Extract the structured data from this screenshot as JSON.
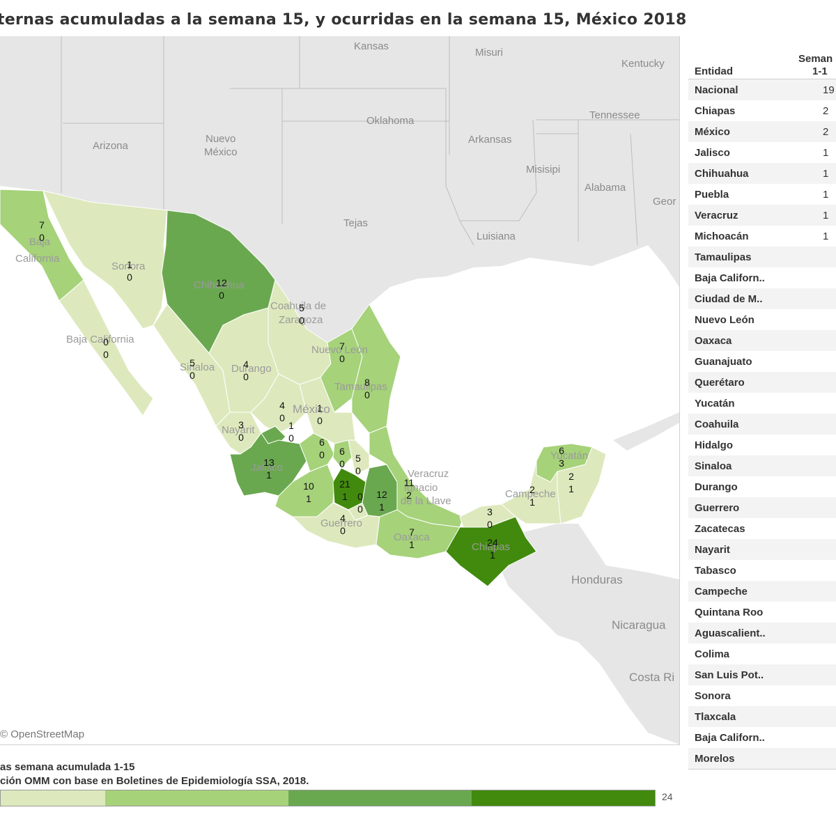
{
  "title": "ternas acumuladas a la semana 15, y ocurridas en la semana 15, México 2018",
  "attribution": "© OpenStreetMap",
  "legend": {
    "line1": "as semana acumulada 1-15",
    "line2": "ción OMM con base en Boletines de Epidemiología SSA, 2018.",
    "max_label": "24",
    "colors": [
      "#dde9bd",
      "#a6d27a",
      "#6aa850",
      "#418a0d"
    ]
  },
  "map_labels": {
    "kansas": "Kansas",
    "misuri": "Misuri",
    "kentucky": "Kentucky",
    "oklahoma": "Oklahoma",
    "tennessee": "Tennessee",
    "arizona": "Arizona",
    "nuevo": "Nuevo",
    "mexico_nm": "México",
    "arkansas": "Arkansas",
    "misisipi": "Misisipi",
    "alabama": "Alabama",
    "georgia": "Geor",
    "tejas": "Tejas",
    "luisiana": "Luisiana",
    "honduras": "Honduras",
    "nicaragua": "Nicaragua",
    "costarica": "Costa Ri",
    "baja": "Baja",
    "california": "California",
    "sonora": "Sonora",
    "chihuahua": "Chihuahua",
    "coahuila": "Coahuila de",
    "zaragoza": "Zaragoza",
    "bcs": "Baja California",
    "nuevoleon": "Nuevo León",
    "sinaloa": "Sinaloa",
    "durango": "Durango",
    "tamaulipas": "Tamaulipas",
    "mexico": "México",
    "nayarit": "Nayarit",
    "jalisco": "Jalisco",
    "veracruz1": "Veracruz",
    "veracruz2": "Ignacio",
    "veracruz3": "de la Llave",
    "guerrero": "Guerrero",
    "oaxaca": "Oaxaca",
    "chiapas": "Chiapas",
    "campeche": "Campeche",
    "yucatan": "Yucatán"
  },
  "map_values": [
    {
      "name": "Baja California",
      "a": "7",
      "b": "0"
    },
    {
      "name": "Sonora",
      "a": "1",
      "b": "0"
    },
    {
      "name": "Chihuahua",
      "a": "12",
      "b": "0"
    },
    {
      "name": "Coahuila",
      "a": "5",
      "b": "0"
    },
    {
      "name": "Baja California Sur",
      "a": "0",
      "b": "0"
    },
    {
      "name": "Nuevo León",
      "a": "7",
      "b": "0"
    },
    {
      "name": "Sinaloa",
      "a": "5",
      "b": "0"
    },
    {
      "name": "Durango",
      "a": "4",
      "b": "0"
    },
    {
      "name": "Tamaulipas",
      "a": "8",
      "b": "0"
    },
    {
      "name": "Zacatecas",
      "a": "4",
      "b": "0"
    },
    {
      "name": "San Luis Potosí",
      "a": "1",
      "b": "0"
    },
    {
      "name": "Aguascalientes",
      "a": "1",
      "b": "0"
    },
    {
      "name": "Nayarit",
      "a": "3",
      "b": "0"
    },
    {
      "name": "Guanajuato",
      "a": "6",
      "b": "0"
    },
    {
      "name": "Querétaro",
      "a": "6",
      "b": "0"
    },
    {
      "name": "Hidalgo",
      "a": "5",
      "b": "0"
    },
    {
      "name": "Jalisco",
      "a": "13",
      "b": "1"
    },
    {
      "name": "Michoacán",
      "a": "10",
      "b": "1"
    },
    {
      "name": "México",
      "a": "21",
      "b": "1"
    },
    {
      "name": "Ciudad de México",
      "a": "0",
      "b": "0"
    },
    {
      "name": "Puebla",
      "a": "12",
      "b": "1"
    },
    {
      "name": "Veracruz",
      "a": "11",
      "b": "2"
    },
    {
      "name": "Guerrero",
      "a": "4",
      "b": "0"
    },
    {
      "name": "Oaxaca",
      "a": "7",
      "b": "1"
    },
    {
      "name": "Tabasco",
      "a": "3",
      "b": "0"
    },
    {
      "name": "Chiapas",
      "a": "24",
      "b": "1"
    },
    {
      "name": "Campeche",
      "a": "2",
      "b": "1"
    },
    {
      "name": "Yucatán",
      "a": "6",
      "b": "3"
    },
    {
      "name": "Quintana Roo",
      "a": "2",
      "b": "1"
    }
  ],
  "table": {
    "col_entidad": "Entidad",
    "col_semana_1": "Seman",
    "col_semana_2": "1-1",
    "rows": [
      {
        "name": "Nacional",
        "val": "19"
      },
      {
        "name": "Chiapas",
        "val": "2"
      },
      {
        "name": "México",
        "val": "2"
      },
      {
        "name": "Jalisco",
        "val": "1"
      },
      {
        "name": "Chihuahua",
        "val": "1"
      },
      {
        "name": "Puebla",
        "val": "1"
      },
      {
        "name": "Veracruz",
        "val": "1"
      },
      {
        "name": "Michoacán",
        "val": "1"
      },
      {
        "name": "Tamaulipas",
        "val": ""
      },
      {
        "name": "Baja Californ..",
        "val": ""
      },
      {
        "name": "Ciudad de M..",
        "val": ""
      },
      {
        "name": "Nuevo León",
        "val": ""
      },
      {
        "name": "Oaxaca",
        "val": ""
      },
      {
        "name": "Guanajuato",
        "val": ""
      },
      {
        "name": "Querétaro",
        "val": ""
      },
      {
        "name": "Yucatán",
        "val": ""
      },
      {
        "name": "Coahuila",
        "val": ""
      },
      {
        "name": "Hidalgo",
        "val": ""
      },
      {
        "name": "Sinaloa",
        "val": ""
      },
      {
        "name": "Durango",
        "val": ""
      },
      {
        "name": "Guerrero",
        "val": ""
      },
      {
        "name": "Zacatecas",
        "val": ""
      },
      {
        "name": "Nayarit",
        "val": ""
      },
      {
        "name": "Tabasco",
        "val": ""
      },
      {
        "name": "Campeche",
        "val": ""
      },
      {
        "name": "Quintana Roo",
        "val": ""
      },
      {
        "name": "Aguascalient..",
        "val": ""
      },
      {
        "name": "Colima",
        "val": ""
      },
      {
        "name": "San Luis Pot..",
        "val": ""
      },
      {
        "name": "Sonora",
        "val": ""
      },
      {
        "name": "Tlaxcala",
        "val": ""
      },
      {
        "name": "Baja Californ..",
        "val": ""
      },
      {
        "name": "Morelos",
        "val": ""
      }
    ]
  }
}
